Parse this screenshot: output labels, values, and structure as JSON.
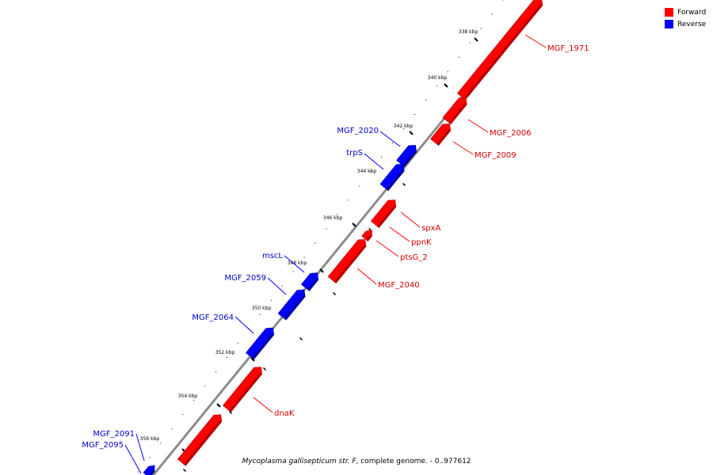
{
  "legend": [
    {
      "label": "Forward",
      "color": "#ff0000"
    },
    {
      "label": "Reverse",
      "color": "#0000ff"
    }
  ],
  "caption": {
    "organism": "Mycoplasma gallisepticum str. F",
    "rest": ", complete genome. - 0..977612"
  },
  "colors": {
    "forward": "#ff0000",
    "forward_dark": "#b30000",
    "reverse": "#0000ff",
    "reverse_dark": "#0000a0",
    "backbone": "#8c8c8c"
  },
  "ruler": {
    "unit": "kbp",
    "ticks": [
      "338 kbp",
      "340 kbp",
      "342 kbp",
      "344 kbp",
      "346 kbp",
      "348 kbp",
      "350 kbp",
      "352 kbp",
      "354 kbp",
      "356 kbp"
    ]
  },
  "genes": [
    {
      "name": "MGF_1971",
      "strand": "forward"
    },
    {
      "name": "MGF_2006",
      "strand": "forward"
    },
    {
      "name": "MGF_2009",
      "strand": "forward"
    },
    {
      "name": "spxA",
      "strand": "forward"
    },
    {
      "name": "ppnK",
      "strand": "forward"
    },
    {
      "name": "ptsG_2",
      "strand": "forward"
    },
    {
      "name": "MGF_2040",
      "strand": "forward"
    },
    {
      "name": "dnaK",
      "strand": "forward"
    },
    {
      "name": "MGF_2020",
      "strand": "reverse"
    },
    {
      "name": "trpS",
      "strand": "reverse"
    },
    {
      "name": "mscL",
      "strand": "reverse"
    },
    {
      "name": "MGF_2059",
      "strand": "reverse"
    },
    {
      "name": "MGF_2064",
      "strand": "reverse"
    },
    {
      "name": "MGF_2091",
      "strand": "reverse"
    },
    {
      "name": "MGF_2095",
      "strand": "reverse"
    }
  ]
}
